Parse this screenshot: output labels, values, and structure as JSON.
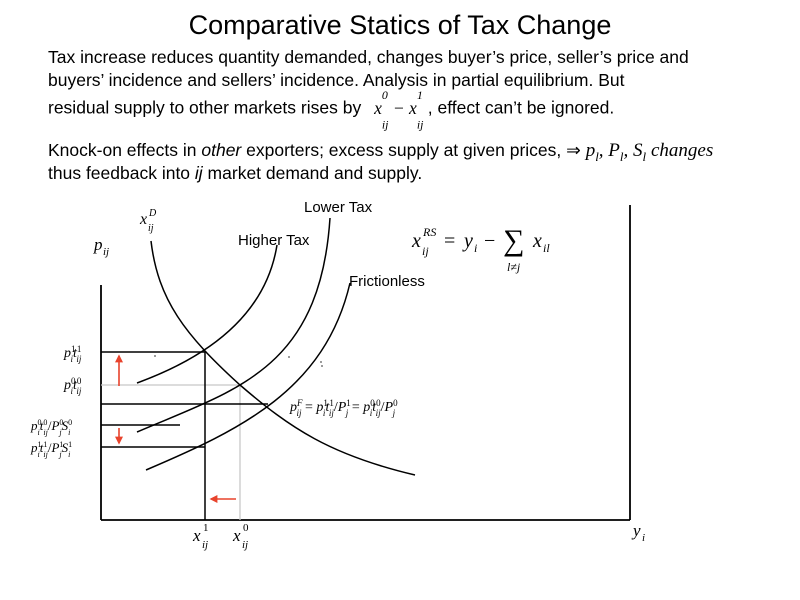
{
  "title": "Comparative Statics of Tax Change",
  "paragraph1": {
    "line1": "Tax increase reduces quantity demanded, changes buyer’s price, seller’s price and",
    "line2": "buyers’ incidence and sellers’ incidence. Analysis in partial equilibrium. But",
    "line3_before": "residual supply to other markets rises by",
    "line3_after": ", effect can’t be ignored."
  },
  "paragraph2": {
    "line1_before": "Knock-on effects in ",
    "line1_emphasis": "other",
    "line1_after": " exporters; excess supply at given prices,",
    "implies": "⇒",
    "changes_word": "changes",
    "line2_before": "thus feedback into ",
    "line2_emphasis": "ij",
    "line2_after": " market demand and supply."
  },
  "diagram": {
    "curve_labels": {
      "lower_tax": "Lower Tax",
      "higher_tax": "Higher Tax",
      "frictionless": "Frictionless"
    },
    "residual_supply_formula": {
      "lhs": "x",
      "lhs_sup": "RS",
      "lhs_sub": "ij",
      "equals": "=",
      "y": "y",
      "y_sub": "i",
      "minus": "−",
      "sum": "∑",
      "sum_index": "l≠j",
      "x": "x",
      "x_sub": "il"
    },
    "demand_label": {
      "base": "x",
      "sup": "D",
      "sub": "ij"
    },
    "y_axis_label": {
      "base": "p",
      "sub": "ij"
    },
    "x_axis_label": {
      "base": "y",
      "sub": "i"
    },
    "x_ticks": [
      {
        "base": "x",
        "sup": "1",
        "sub": "ij"
      },
      {
        "base": "x",
        "sup": "0",
        "sub": "ij"
      }
    ],
    "frictionless_price": "p",
    "arrow_color": "#e8432c",
    "grid_line_color": "#c8c8c8"
  }
}
